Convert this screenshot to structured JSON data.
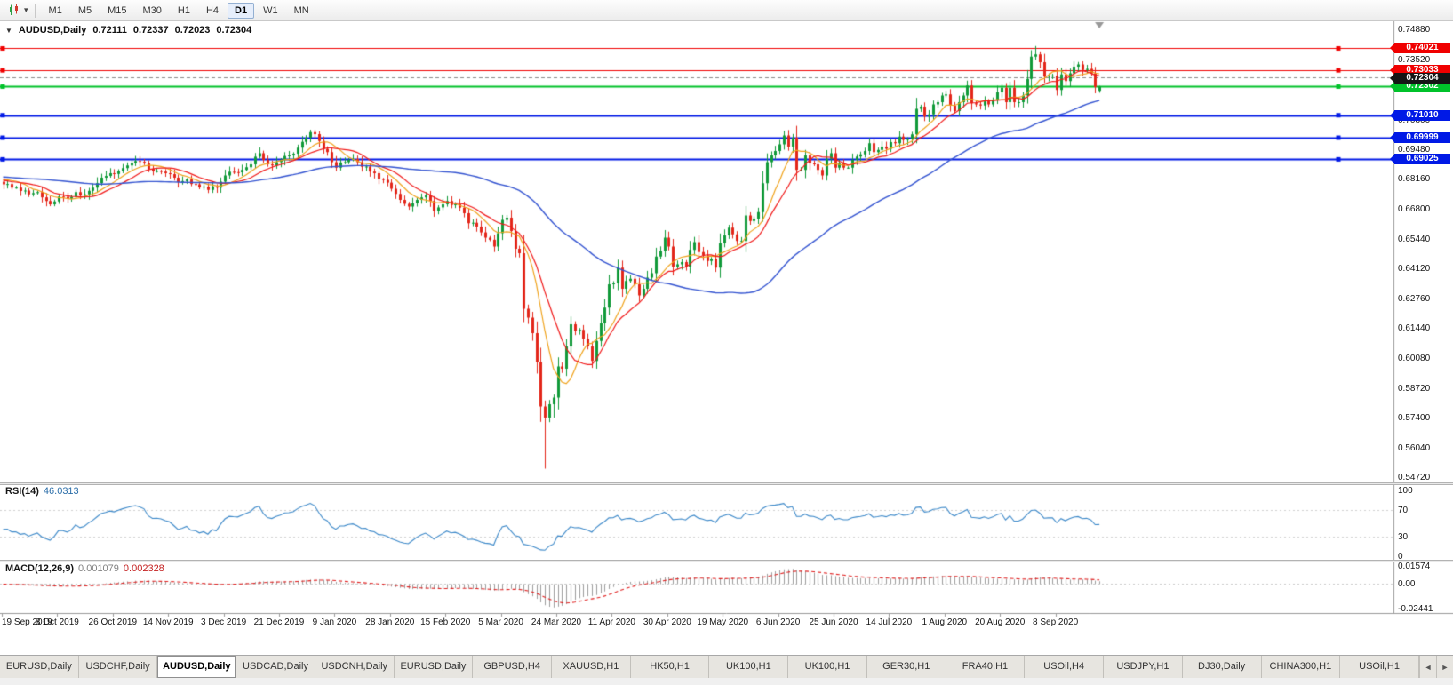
{
  "toolbar": {
    "dropdown_glyph": "▾",
    "timeframes": [
      "M1",
      "M5",
      "M15",
      "M30",
      "H1",
      "H4",
      "D1",
      "W1",
      "MN"
    ],
    "active_timeframe": "D1"
  },
  "chart": {
    "window_icon": "▼",
    "symbol": "AUDUSD,Daily",
    "ohlc": {
      "open": "0.72111",
      "high": "0.72337",
      "low": "0.72023",
      "close": "0.72304"
    }
  },
  "rsi": {
    "label": "RSI(14)",
    "value": "46.0313",
    "axis": [
      "100",
      "70",
      "30",
      "0"
    ]
  },
  "macd": {
    "label": "MACD(12,26,9)",
    "main_value": "0.001079",
    "signal_value": "0.002328",
    "axis_top": "0.01574",
    "axis_zero": "0.00",
    "axis_bottom": "-0.02441"
  },
  "tabs": {
    "items": [
      "EURUSD,Daily",
      "USDCHF,Daily",
      "AUDUSD,Daily",
      "USDCAD,Daily",
      "USDCNH,Daily",
      "EURUSD,Daily",
      "GBPUSD,H4",
      "XAUUSD,H1",
      "HK50,H1",
      "UK100,H1",
      "UK100,H1",
      "GER30,H1",
      "FRA40,H1",
      "USOil,H4",
      "USDJPY,H1",
      "DJ30,Daily",
      "CHINA300,H1",
      "USOil,H1"
    ],
    "active_index": 2,
    "nav_left": "◄",
    "nav_right": "►"
  },
  "chart_data": {
    "type": "candlestick",
    "symbol": "AUDUSD",
    "timeframe": "Daily",
    "bars": 258,
    "y_axis": {
      "max": 0.7488,
      "min": 0.5472,
      "ticks": [
        "0.74880",
        "0.73520",
        "0.72160",
        "0.70800",
        "0.69480",
        "0.68160",
        "0.66800",
        "0.65440",
        "0.64120",
        "0.62760",
        "0.61440",
        "0.60080",
        "0.58720",
        "0.57400",
        "0.56040",
        "0.54720"
      ]
    },
    "x_axis_labels": [
      "19 Sep 2019",
      "8 Oct 2019",
      "26 Oct 2019",
      "14 Nov 2019",
      "3 Dec 2019",
      "21 Dec 2019",
      "9 Jan 2020",
      "28 Jan 2020",
      "15 Feb 2020",
      "5 Mar 2020",
      "24 Mar 2020",
      "11 Apr 2020",
      "30 Apr 2020",
      "19 May 2020",
      "6 Jun 2020",
      "25 Jun 2020",
      "14 Jul 2020",
      "1 Aug 2020",
      "20 Aug 2020",
      "8 Sep 2020"
    ],
    "colors": {
      "bull": "#119a39",
      "bear": "#e3261a"
    },
    "last_price_value": 0.72304,
    "last_price_label": "0.72304",
    "last_price_box_color": "#151515",
    "horizontal_lines": [
      {
        "value": 0.74021,
        "label": "0.74021",
        "color": "#f00000",
        "text_color": "#ffffff",
        "width": 1
      },
      {
        "value": 0.73033,
        "label": "0.73033",
        "color": "#f00000",
        "text_color": "#ffffff",
        "width": 1
      },
      {
        "value": 0.72302,
        "label": "0.72302",
        "color": "#00c22a",
        "text_color": "#ffffff",
        "width": 2
      },
      {
        "value": 0.7101,
        "label": "0.71010",
        "color": "#0019e6",
        "text_color": "#ffffff",
        "width": 2
      },
      {
        "value": 0.69999,
        "label": "0.69999",
        "color": "#0019e6",
        "text_color": "#ffffff",
        "width": 2
      },
      {
        "value": 0.69025,
        "label": "0.69025",
        "color": "#0019e6",
        "text_color": "#ffffff",
        "width": 2
      }
    ],
    "moving_averages": [
      {
        "period": 8,
        "color": "#efa21b",
        "width": 1.2
      },
      {
        "period": 13,
        "color": "#f01818",
        "width": 1.2
      },
      {
        "period": 55,
        "color": "#3353d0",
        "width": 1.4
      }
    ],
    "indicators": {
      "rsi": {
        "period": 14,
        "color": "#3a87c8",
        "levels": [
          70,
          30
        ]
      },
      "macd": {
        "fast": 12,
        "slow": 26,
        "signal": 9,
        "histogram_color": "#9c9c9c",
        "signal_color": "#e02020"
      }
    },
    "noise_amp": 0.0012,
    "warmup": {
      "bars": 60,
      "base": 0.6825
    },
    "close_anchors": [
      [
        0,
        0.679
      ],
      [
        2,
        0.6775
      ],
      [
        4,
        0.676
      ],
      [
        6,
        0.6745
      ],
      [
        8,
        0.6755
      ],
      [
        10,
        0.6715
      ],
      [
        11,
        0.67
      ],
      [
        13,
        0.6735
      ],
      [
        15,
        0.6725
      ],
      [
        17,
        0.6755
      ],
      [
        19,
        0.6745
      ],
      [
        21,
        0.6775
      ],
      [
        23,
        0.682
      ],
      [
        25,
        0.684
      ],
      [
        27,
        0.685
      ],
      [
        29,
        0.6875
      ],
      [
        31,
        0.6895
      ],
      [
        33,
        0.6885
      ],
      [
        34,
        0.686
      ],
      [
        36,
        0.685
      ],
      [
        38,
        0.684
      ],
      [
        40,
        0.682
      ],
      [
        41,
        0.68
      ],
      [
        43,
        0.6812
      ],
      [
        45,
        0.679
      ],
      [
        47,
        0.678
      ],
      [
        48,
        0.6765
      ],
      [
        50,
        0.6775
      ],
      [
        52,
        0.683
      ],
      [
        54,
        0.6845
      ],
      [
        56,
        0.6855
      ],
      [
        58,
        0.688
      ],
      [
        60,
        0.693
      ],
      [
        61,
        0.69
      ],
      [
        62,
        0.688
      ],
      [
        64,
        0.689
      ],
      [
        65,
        0.69
      ],
      [
        67,
        0.692
      ],
      [
        69,
        0.6955
      ],
      [
        71,
        0.7
      ],
      [
        72,
        0.7025
      ],
      [
        74,
        0.6985
      ],
      [
        76,
        0.6935
      ],
      [
        78,
        0.6865
      ],
      [
        80,
        0.689
      ],
      [
        81,
        0.69
      ],
      [
        83,
        0.689
      ],
      [
        85,
        0.687
      ],
      [
        87,
        0.684
      ],
      [
        89,
        0.681
      ],
      [
        91,
        0.677
      ],
      [
        93,
        0.672
      ],
      [
        95,
        0.669
      ],
      [
        97,
        0.672
      ],
      [
        99,
        0.674
      ],
      [
        101,
        0.667
      ],
      [
        103,
        0.67
      ],
      [
        104,
        0.6715
      ],
      [
        106,
        0.67
      ],
      [
        107,
        0.6685
      ],
      [
        109,
        0.6615
      ],
      [
        111,
        0.66
      ],
      [
        113,
        0.655
      ],
      [
        115,
        0.651
      ],
      [
        116,
        0.657
      ],
      [
        117,
        0.663
      ],
      [
        118,
        0.664
      ],
      [
        119,
        0.658
      ],
      [
        120,
        0.65
      ],
      [
        121,
        0.648
      ],
      [
        122,
        0.623
      ],
      [
        123,
        0.619
      ],
      [
        124,
        0.612
      ],
      [
        125,
        0.599
      ],
      [
        126,
        0.579
      ],
      [
        127,
        0.574
      ],
      [
        128,
        0.58
      ],
      [
        129,
        0.583
      ],
      [
        130,
        0.597
      ],
      [
        131,
        0.596
      ],
      [
        132,
        0.606
      ],
      [
        133,
        0.616
      ],
      [
        134,
        0.613
      ],
      [
        135,
        0.6135
      ],
      [
        136,
        0.6095
      ],
      [
        137,
        0.606
      ],
      [
        138,
        0.5995
      ],
      [
        139,
        0.6085
      ],
      [
        140,
        0.6165
      ],
      [
        141,
        0.6235
      ],
      [
        142,
        0.634
      ],
      [
        143,
        0.6345
      ],
      [
        144,
        0.6415
      ],
      [
        145,
        0.632
      ],
      [
        146,
        0.6355
      ],
      [
        147,
        0.6365
      ],
      [
        148,
        0.634
      ],
      [
        149,
        0.629
      ],
      [
        150,
        0.632
      ],
      [
        151,
        0.637
      ],
      [
        152,
        0.639
      ],
      [
        153,
        0.6465
      ],
      [
        154,
        0.649
      ],
      [
        155,
        0.655
      ],
      [
        156,
        0.651
      ],
      [
        157,
        0.642
      ],
      [
        158,
        0.643
      ],
      [
        159,
        0.644
      ],
      [
        160,
        0.642
      ],
      [
        161,
        0.6495
      ],
      [
        162,
        0.653
      ],
      [
        163,
        0.6485
      ],
      [
        164,
        0.647
      ],
      [
        165,
        0.6445
      ],
      [
        166,
        0.6455
      ],
      [
        167,
        0.6415
      ],
      [
        168,
        0.6525
      ],
      [
        169,
        0.656
      ],
      [
        170,
        0.6595
      ],
      [
        171,
        0.6565
      ],
      [
        172,
        0.6535
      ],
      [
        173,
        0.6535
      ],
      [
        174,
        0.665
      ],
      [
        175,
        0.6625
      ],
      [
        176,
        0.6635
      ],
      [
        177,
        0.6665
      ],
      [
        178,
        0.6795
      ],
      [
        179,
        0.689
      ],
      [
        180,
        0.692
      ],
      [
        181,
        0.694
      ],
      [
        182,
        0.697
      ],
      [
        183,
        0.701
      ],
      [
        184,
        0.696
      ],
      [
        185,
        0.7
      ],
      [
        186,
        0.6855
      ],
      [
        187,
        0.6855
      ],
      [
        188,
        0.692
      ],
      [
        189,
        0.6885
      ],
      [
        190,
        0.688
      ],
      [
        191,
        0.6855
      ],
      [
        192,
        0.683
      ],
      [
        193,
        0.6905
      ],
      [
        194,
        0.693
      ],
      [
        195,
        0.6865
      ],
      [
        196,
        0.6885
      ],
      [
        197,
        0.6865
      ],
      [
        198,
        0.6865
      ],
      [
        199,
        0.69
      ],
      [
        200,
        0.6915
      ],
      [
        201,
        0.6925
      ],
      [
        202,
        0.694
      ],
      [
        203,
        0.6975
      ],
      [
        204,
        0.6935
      ],
      [
        205,
        0.6945
      ],
      [
        206,
        0.696
      ],
      [
        207,
        0.695
      ],
      [
        208,
        0.698
      ],
      [
        209,
        0.6975
      ],
      [
        210,
        0.7005
      ],
      [
        211,
        0.699
      ],
      [
        212,
        0.6995
      ],
      [
        213,
        0.7015
      ],
      [
        214,
        0.713
      ],
      [
        215,
        0.714
      ],
      [
        216,
        0.7095
      ],
      [
        217,
        0.7105
      ],
      [
        218,
        0.715
      ],
      [
        219,
        0.716
      ],
      [
        220,
        0.719
      ],
      [
        221,
        0.7195
      ],
      [
        222,
        0.7145
      ],
      [
        223,
        0.712
      ],
      [
        224,
        0.716
      ],
      [
        225,
        0.719
      ],
      [
        226,
        0.7235
      ],
      [
        227,
        0.7155
      ],
      [
        228,
        0.715
      ],
      [
        229,
        0.7145
      ],
      [
        230,
        0.7165
      ],
      [
        231,
        0.715
      ],
      [
        232,
        0.717
      ],
      [
        233,
        0.7205
      ],
      [
        234,
        0.7225
      ],
      [
        235,
        0.716
      ],
      [
        236,
        0.7225
      ],
      [
        237,
        0.716
      ],
      [
        238,
        0.716
      ],
      [
        239,
        0.719
      ],
      [
        240,
        0.7265
      ],
      [
        241,
        0.7365
      ],
      [
        242,
        0.7375
      ],
      [
        243,
        0.734
      ],
      [
        244,
        0.7275
      ],
      [
        245,
        0.728
      ],
      [
        246,
        0.728
      ],
      [
        247,
        0.7215
      ],
      [
        248,
        0.7285
      ],
      [
        249,
        0.7255
      ],
      [
        250,
        0.729
      ],
      [
        251,
        0.732
      ],
      [
        252,
        0.733
      ],
      [
        253,
        0.7305
      ],
      [
        254,
        0.731
      ],
      [
        255,
        0.729
      ],
      [
        256,
        0.7228
      ],
      [
        257,
        0.72304
      ]
    ],
    "wick_overrides": {
      "122": {
        "low": 0.617
      },
      "127": {
        "low": 0.551
      },
      "129": {
        "low": 0.574
      },
      "242": {
        "high": 0.7413
      },
      "247": {
        "low": 0.719
      },
      "256": {
        "low": 0.72
      },
      "257": {
        "open": 0.72111,
        "high": 0.72337,
        "low": 0.72023,
        "close": 0.72304
      }
    }
  }
}
